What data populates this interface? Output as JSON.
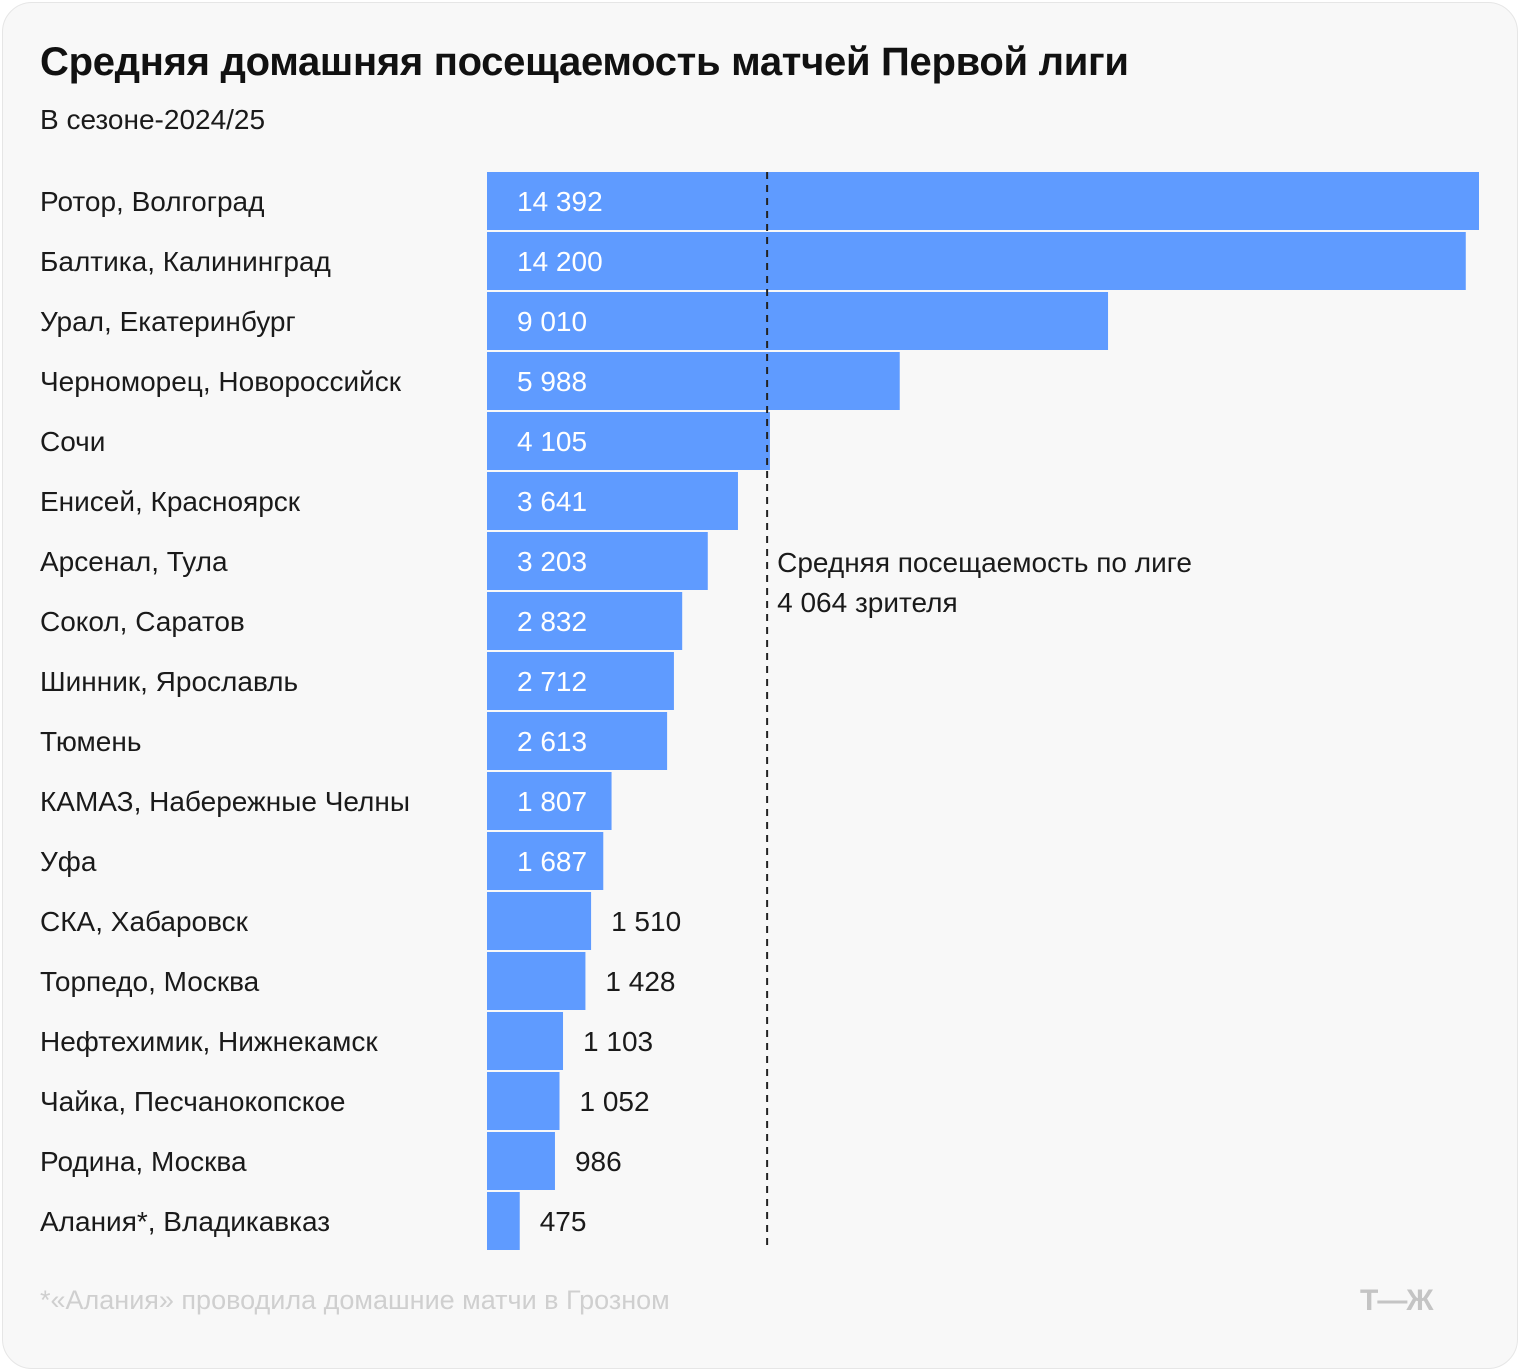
{
  "title": "Средняя домашняя посещаемость матчей Первой лиги",
  "subtitle": "В сезоне-2024/25",
  "chart_data": {
    "type": "bar",
    "orientation": "horizontal",
    "categories": [
      "Ротор, Волгоград",
      "Балтика, Калининград",
      "Урал, Екатеринбург",
      "Черноморец, Новороссийск",
      "Сочи",
      "Енисей, Красноярск",
      "Арсенал, Тула",
      "Сокол, Саратов",
      "Шинник, Ярославль",
      "Тюмень",
      "КАМАЗ, Набережные Челны",
      "Уфа",
      "СКА, Хабаровск",
      "Торпедо, Москва",
      "Нефтехимик, Нижнекамск",
      "Чайка, Песчанокопское",
      "Родина, Москва",
      "Алания*, Владикавказ"
    ],
    "values": [
      14392,
      14200,
      9010,
      5988,
      4105,
      3641,
      3203,
      2832,
      2712,
      2613,
      1807,
      1687,
      1510,
      1428,
      1103,
      1052,
      986,
      475
    ],
    "value_labels": [
      "14 392",
      "14 200",
      "9 010",
      "5 988",
      "4 105",
      "3 641",
      "3 203",
      "2 832",
      "2 712",
      "2 613",
      "1 807",
      "1 687",
      "1 510",
      "1 428",
      "1 103",
      "1 052",
      "986",
      "475"
    ],
    "xlim": [
      0,
      14392
    ],
    "grid": false,
    "bar_color": "#5f9bff",
    "reference_line": {
      "value": 4064,
      "label_line1": "Средняя посещаемость по лиге",
      "label_line2": "4 064 зрителя"
    }
  },
  "footnote": "*«Алания» проводила домашние матчи в Грозном",
  "logo_text": "Т—Ж"
}
